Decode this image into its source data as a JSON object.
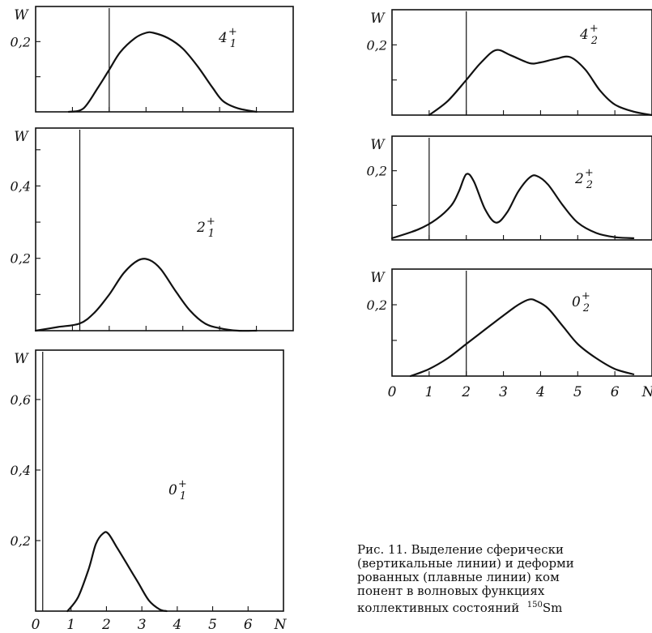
{
  "chart_data": [
    {
      "type": "line",
      "title": "",
      "state_label": {
        "base": "4",
        "sup": "+",
        "sub": "1"
      },
      "ylabel": "W",
      "xlim": [
        0,
        7
      ],
      "ylim": [
        0,
        0.3
      ],
      "y_tick_labels": [
        {
          "value": 0.2,
          "label": "0,2"
        }
      ],
      "x_tick_labels": [],
      "spherical_line_x": 2,
      "curve": {
        "x": [
          0.9,
          1.3,
          1.7,
          2.0,
          2.3,
          2.7,
          3.0,
          3.2,
          3.6,
          4.0,
          4.4,
          4.8,
          5.1,
          5.5,
          6.0
        ],
        "y": [
          0.0,
          0.01,
          0.07,
          0.12,
          0.17,
          0.21,
          0.225,
          0.225,
          0.21,
          0.18,
          0.13,
          0.07,
          0.03,
          0.01,
          0.0
        ]
      }
    },
    {
      "type": "line",
      "title": "",
      "state_label": {
        "base": "2",
        "sup": "+",
        "sub": "1"
      },
      "ylabel": "W",
      "xlim": [
        0,
        7
      ],
      "ylim": [
        0,
        0.56
      ],
      "y_tick_labels": [
        {
          "value": 0.4,
          "label": "0,4"
        },
        {
          "value": 0.2,
          "label": "0,2"
        }
      ],
      "x_tick_labels": [],
      "spherical_line_x": 1.2,
      "curve": {
        "x": [
          0.0,
          0.6,
          1.2,
          1.6,
          2.0,
          2.4,
          2.8,
          3.1,
          3.4,
          3.8,
          4.2,
          4.6,
          5.0,
          5.5,
          6.0
        ],
        "y": [
          0.0,
          0.01,
          0.02,
          0.05,
          0.1,
          0.16,
          0.195,
          0.195,
          0.17,
          0.11,
          0.055,
          0.02,
          0.007,
          0.0,
          0.0
        ]
      }
    },
    {
      "type": "line",
      "title": "",
      "state_label": {
        "base": "0",
        "sup": "+",
        "sub": "1"
      },
      "ylabel": "W",
      "xlabel": "N",
      "xlim": [
        0,
        7
      ],
      "ylim": [
        0,
        0.74
      ],
      "y_tick_labels": [
        {
          "value": 0.6,
          "label": "0,6"
        },
        {
          "value": 0.4,
          "label": "0,4"
        },
        {
          "value": 0.2,
          "label": "0,2"
        }
      ],
      "x_tick_labels": [
        "0",
        "1",
        "2",
        "3",
        "4",
        "5",
        "6",
        "N"
      ],
      "spherical_line_x": 0.2,
      "curve": {
        "x": [
          0.9,
          1.2,
          1.5,
          1.7,
          1.9,
          2.05,
          2.3,
          2.6,
          2.9,
          3.2,
          3.5,
          3.7
        ],
        "y": [
          0.0,
          0.04,
          0.12,
          0.19,
          0.22,
          0.22,
          0.18,
          0.13,
          0.08,
          0.03,
          0.005,
          0.0
        ]
      }
    },
    {
      "type": "line",
      "title": "",
      "state_label": {
        "base": "4",
        "sup": "+",
        "sub": "2"
      },
      "ylabel": "W",
      "xlim": [
        0,
        7
      ],
      "ylim": [
        0,
        0.3
      ],
      "y_tick_labels": [
        {
          "value": 0.2,
          "label": "0,2"
        }
      ],
      "x_tick_labels": [],
      "spherical_line_x": 2,
      "curve": {
        "x": [
          1.0,
          1.5,
          2.0,
          2.4,
          2.8,
          3.2,
          3.7,
          4.0,
          4.4,
          4.8,
          5.2,
          5.6,
          6.0,
          6.5,
          7.0
        ],
        "y": [
          0.0,
          0.04,
          0.1,
          0.15,
          0.185,
          0.17,
          0.148,
          0.15,
          0.16,
          0.165,
          0.13,
          0.07,
          0.03,
          0.01,
          0.0
        ]
      }
    },
    {
      "type": "line",
      "title": "",
      "state_label": {
        "base": "2",
        "sup": "+",
        "sub": "2"
      },
      "ylabel": "W",
      "xlim": [
        0,
        7
      ],
      "ylim": [
        0,
        0.3
      ],
      "y_tick_labels": [
        {
          "value": 0.2,
          "label": "0,2"
        }
      ],
      "x_tick_labels": [],
      "spherical_line_x": 1,
      "curve": {
        "x": [
          0.0,
          0.7,
          1.2,
          1.6,
          1.8,
          2.0,
          2.2,
          2.5,
          2.8,
          3.1,
          3.4,
          3.7,
          3.9,
          4.2,
          4.6,
          5.0,
          5.5,
          6.0,
          6.5
        ],
        "y": [
          0.005,
          0.03,
          0.06,
          0.1,
          0.14,
          0.19,
          0.17,
          0.09,
          0.05,
          0.08,
          0.14,
          0.18,
          0.185,
          0.16,
          0.1,
          0.05,
          0.02,
          0.008,
          0.005
        ]
      }
    },
    {
      "type": "line",
      "title": "",
      "state_label": {
        "base": "0",
        "sup": "+",
        "sub": "2"
      },
      "ylabel": "W",
      "xlabel": "N",
      "xlim": [
        0,
        7
      ],
      "ylim": [
        0,
        0.3
      ],
      "y_tick_labels": [
        {
          "value": 0.2,
          "label": "0,2"
        }
      ],
      "x_tick_labels": [
        "0",
        "1",
        "2",
        "3",
        "4",
        "5",
        "6",
        "N"
      ],
      "spherical_line_x": 2,
      "curve": {
        "x": [
          0.5,
          1.0,
          1.5,
          2.0,
          2.5,
          3.0,
          3.4,
          3.7,
          3.9,
          4.2,
          4.6,
          5.0,
          5.5,
          6.0,
          6.5
        ],
        "y": [
          0.0,
          0.02,
          0.05,
          0.09,
          0.13,
          0.17,
          0.2,
          0.215,
          0.21,
          0.19,
          0.14,
          0.09,
          0.05,
          0.02,
          0.005
        ]
      }
    }
  ],
  "caption": {
    "lines": [
      "Рис. 11. Выделение сферически",
      "(вертикальные линии) и деформи",
      "рованных (плавные линии) ком",
      "понент  в  волновых  функциях",
      "коллективных  состояний"
    ],
    "isotope_mass": "150",
    "isotope_element": "Sm"
  }
}
